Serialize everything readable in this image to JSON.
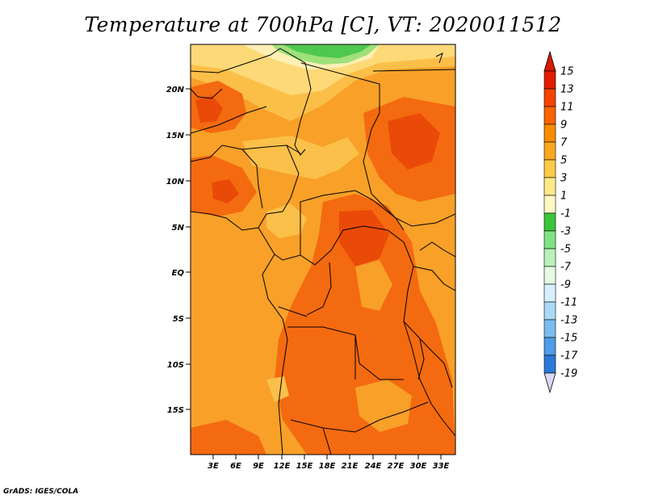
{
  "title": "Temperature at 700hPa [C], VT: 2020011512",
  "credit": "GrADS: IGES/COLA",
  "map": {
    "lat_ticks": [
      "20N",
      "15N",
      "10N",
      "5N",
      "EQ",
      "5S",
      "10S",
      "15S"
    ],
    "lon_ticks": [
      "3E",
      "6E",
      "9E",
      "12E",
      "15E",
      "18E",
      "21E",
      "24E",
      "27E",
      "30E",
      "33E"
    ]
  },
  "colorbar": {
    "labels": [
      "15",
      "13",
      "11",
      "9",
      "7",
      "5",
      "3",
      "1",
      "-1",
      "-3",
      "-5",
      "-7",
      "-9",
      "-11",
      "-13",
      "-15",
      "-17",
      "-19"
    ],
    "colors": [
      "#e11a00",
      "#f24400",
      "#f76400",
      "#f88b00",
      "#f9a820",
      "#fbcb48",
      "#fde98a",
      "#fef8c3",
      "#3cc43c",
      "#82e282",
      "#b8f2b8",
      "#e6fae6",
      "#d7f0ff",
      "#a9d9f7",
      "#7bbcf0",
      "#4f9ce8",
      "#2c78d8",
      "#1654c2",
      "#0a3aa0",
      "#08207c",
      "#d8d8f4"
    ],
    "under_color": "#d8d8f4",
    "over_color": "#d71a00"
  }
}
